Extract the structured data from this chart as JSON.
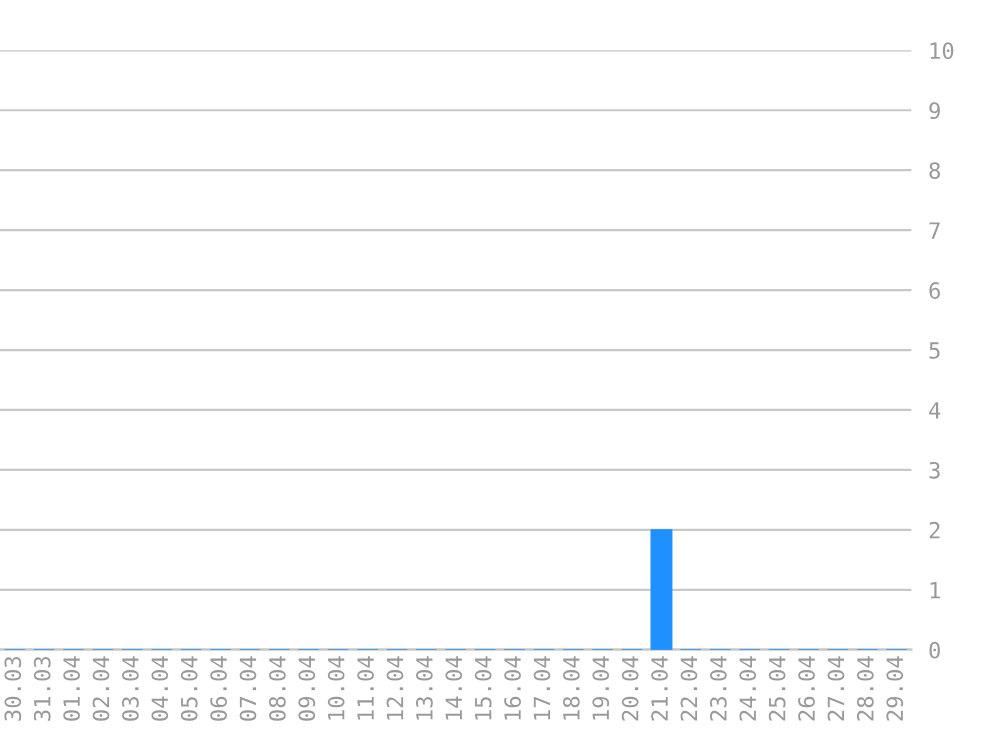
{
  "chart_data": {
    "type": "bar",
    "categories": [
      "30.03",
      "31.03",
      "01.04",
      "02.04",
      "03.04",
      "04.04",
      "05.04",
      "06.04",
      "07.04",
      "08.04",
      "09.04",
      "10.04",
      "11.04",
      "12.04",
      "13.04",
      "14.04",
      "15.04",
      "16.04",
      "17.04",
      "18.04",
      "19.04",
      "20.04",
      "21.04",
      "22.04",
      "23.04",
      "24.04",
      "25.04",
      "26.04",
      "27.04",
      "28.04",
      "29.04"
    ],
    "values": [
      0,
      0,
      0,
      0,
      0,
      0,
      0,
      0,
      0,
      0,
      0,
      0,
      0,
      0,
      0,
      0,
      0,
      0,
      0,
      0,
      0,
      0,
      2,
      0,
      0,
      0,
      0,
      0,
      0,
      0,
      0
    ],
    "color": "#1e90ff",
    "ylim": [
      0,
      10
    ],
    "yticks": [
      0,
      1,
      2,
      3,
      4,
      5,
      6,
      7,
      8,
      9,
      10
    ],
    "grid": "y",
    "legend": false
  }
}
